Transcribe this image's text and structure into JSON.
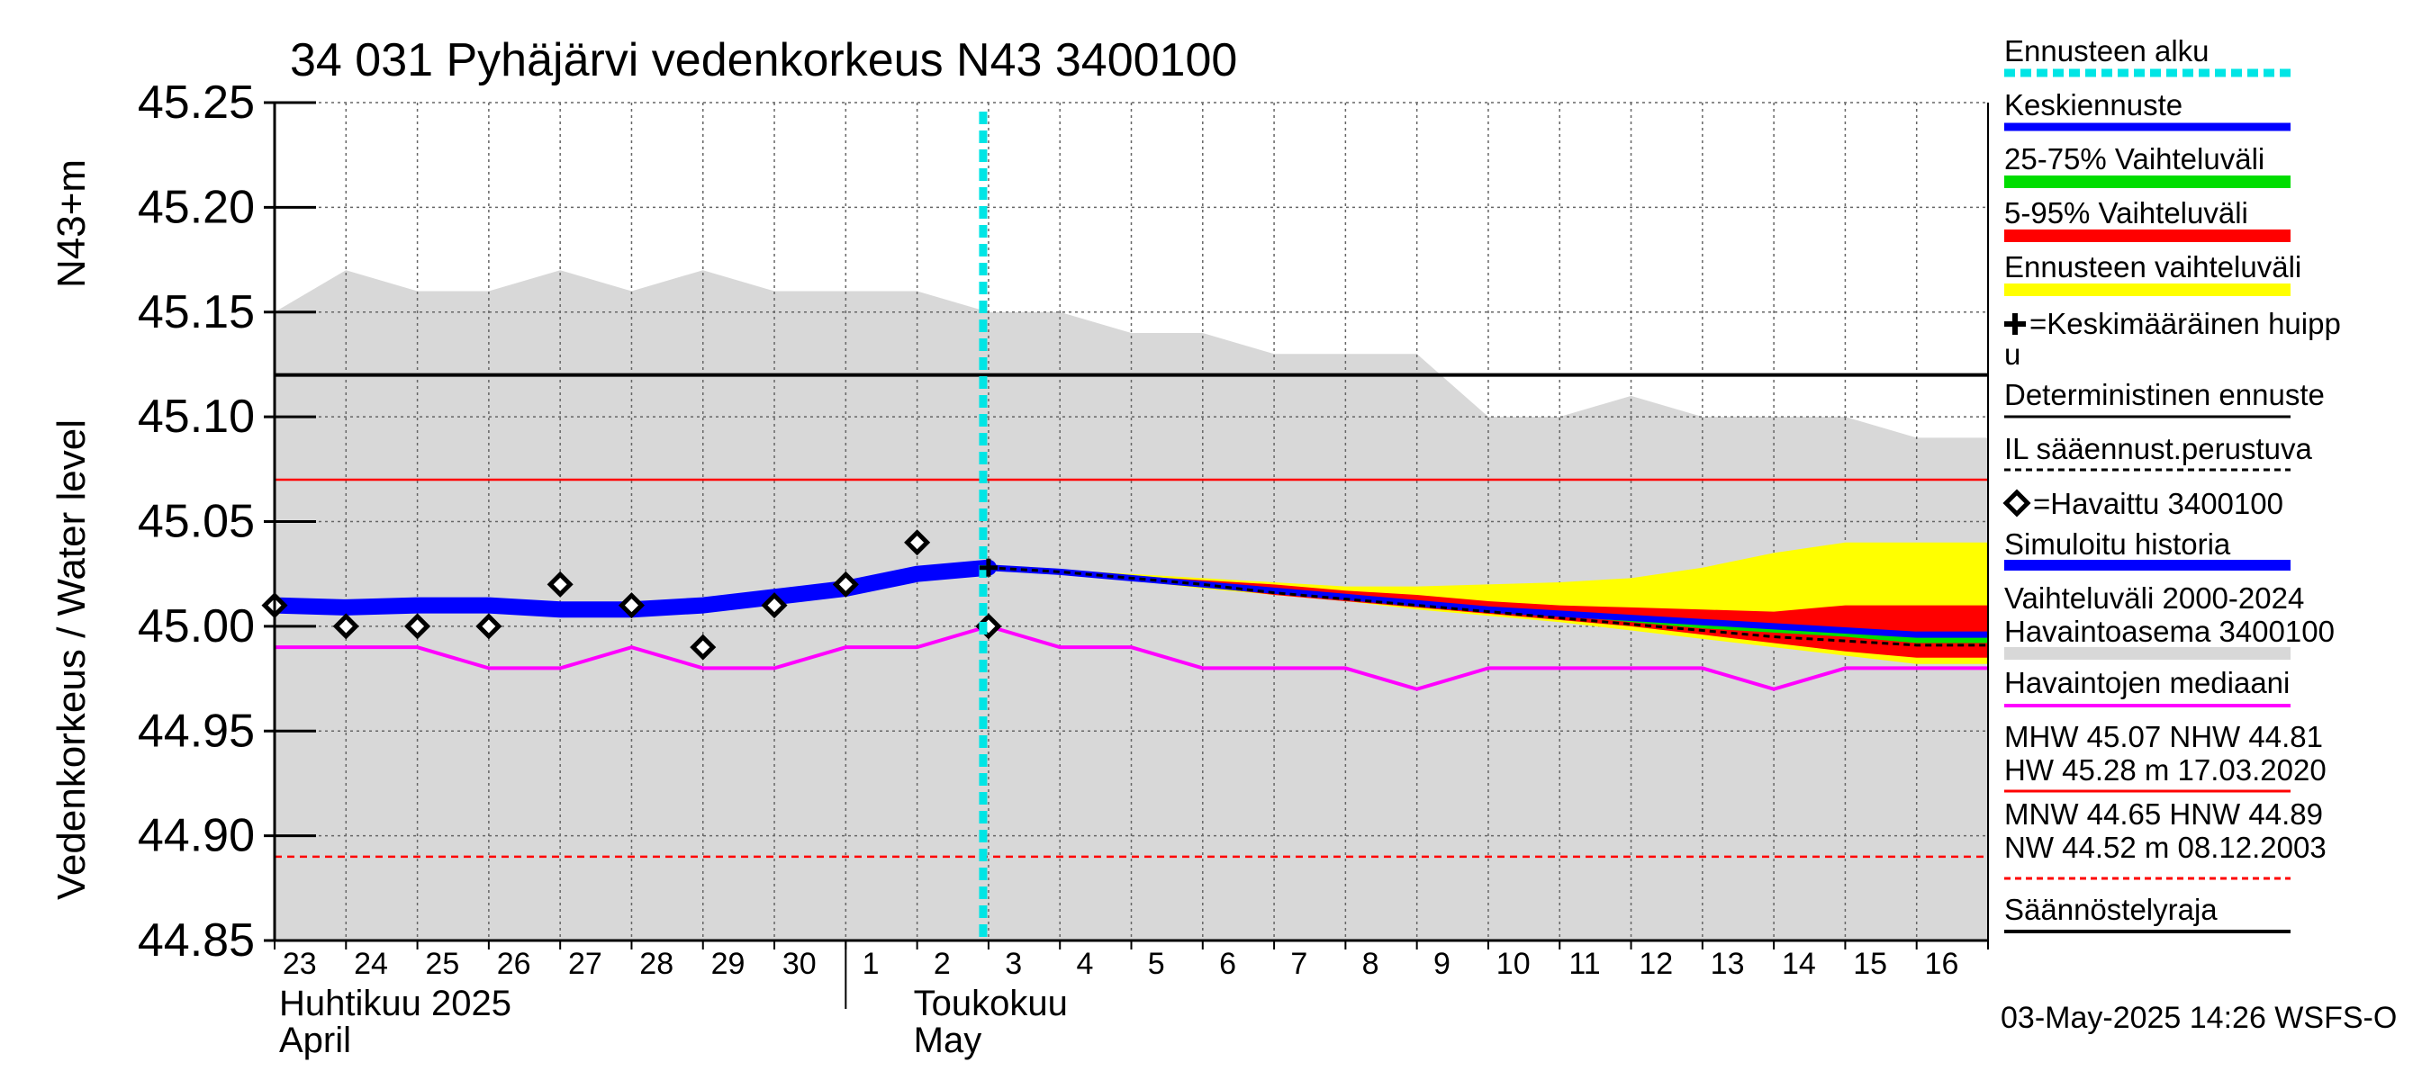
{
  "chart_data": {
    "type": "line",
    "title": "34 031 Pyhäjärvi vedenkorkeus N43 3400100",
    "ylabel": "Vedenkorkeus / Water level",
    "yunit": "N43+m",
    "ylim": [
      44.85,
      45.25
    ],
    "yticks": [
      "45.25",
      "45.20",
      "45.15",
      "45.10",
      "45.05",
      "45.00",
      "44.95",
      "44.90",
      "44.85"
    ],
    "x_start": "2025-04-23",
    "x_end": "2025-05-16",
    "day_labels": [
      "23",
      "24",
      "25",
      "26",
      "27",
      "28",
      "29",
      "30",
      "1",
      "2",
      "3",
      "4",
      "5",
      "6",
      "7",
      "8",
      "9",
      "10",
      "11",
      "12",
      "13",
      "14",
      "15",
      "16"
    ],
    "month_labels": [
      {
        "fi": "Huhtikuu  2025",
        "en": "April",
        "day": "2025-04-23"
      },
      {
        "fi": "Toukokuu",
        "en": "May",
        "day": "2025-05-02"
      }
    ],
    "forecast_start": "2025-05-03",
    "historical_range": {
      "name": "Vaihteluväli 2000-2024",
      "x": [
        "2025-04-23",
        "2025-04-24",
        "2025-04-25",
        "2025-04-26",
        "2025-04-27",
        "2025-04-28",
        "2025-04-29",
        "2025-04-30",
        "2025-05-01",
        "2025-05-02",
        "2025-05-03",
        "2025-05-04",
        "2025-05-05",
        "2025-05-06",
        "2025-05-07",
        "2025-05-08",
        "2025-05-09",
        "2025-05-10",
        "2025-05-11",
        "2025-05-12",
        "2025-05-13",
        "2025-05-14",
        "2025-05-15",
        "2025-05-16"
      ],
      "upper": [
        45.15,
        45.17,
        45.16,
        45.16,
        45.17,
        45.16,
        45.17,
        45.16,
        45.16,
        45.16,
        45.15,
        45.15,
        45.14,
        45.14,
        45.13,
        45.13,
        45.13,
        45.1,
        45.1,
        45.11,
        45.1,
        45.1,
        45.1,
        45.09
      ]
    },
    "median": {
      "name": "Havaintojen mediaani",
      "values": [
        44.99,
        44.99,
        44.99,
        44.98,
        44.98,
        44.99,
        44.98,
        44.98,
        44.99,
        44.99,
        45.0,
        44.99,
        44.99,
        44.98,
        44.98,
        44.98,
        44.97,
        44.98,
        44.98,
        44.98,
        44.98,
        44.97,
        44.98,
        44.98
      ]
    },
    "simulated_history": {
      "name": "Simuloitu historia",
      "x": [
        "2025-04-23",
        "2025-04-24",
        "2025-04-25",
        "2025-04-26",
        "2025-04-27",
        "2025-04-28",
        "2025-04-29",
        "2025-04-30",
        "2025-05-01",
        "2025-05-02",
        "2025-05-03"
      ],
      "values": [
        45.01,
        45.009,
        45.01,
        45.01,
        45.008,
        45.008,
        45.01,
        45.014,
        45.018,
        45.025,
        45.028
      ]
    },
    "observed": {
      "name": "=Havaittu 3400100",
      "x": [
        "2025-04-23",
        "2025-04-24",
        "2025-04-25",
        "2025-04-26",
        "2025-04-27",
        "2025-04-28",
        "2025-04-29",
        "2025-04-30",
        "2025-05-01",
        "2025-05-02",
        "2025-05-03"
      ],
      "values": [
        45.01,
        45.0,
        45.0,
        45.0,
        45.02,
        45.01,
        44.99,
        45.01,
        45.02,
        45.04,
        45.0
      ]
    },
    "forecast": {
      "x": [
        "2025-05-03",
        "2025-05-04",
        "2025-05-05",
        "2025-05-06",
        "2025-05-07",
        "2025-05-08",
        "2025-05-09",
        "2025-05-10",
        "2025-05-11",
        "2025-05-12",
        "2025-05-13",
        "2025-05-14",
        "2025-05-15",
        "2025-05-16"
      ],
      "mean": [
        45.028,
        45.026,
        45.023,
        45.02,
        45.017,
        45.014,
        45.011,
        45.008,
        45.006,
        45.004,
        45.002,
        45.0,
        44.998,
        44.996
      ],
      "deterministic": [
        45.028,
        45.026,
        45.023,
        45.02,
        45.016,
        45.013,
        45.01,
        45.007,
        45.004,
        45.001,
        44.998,
        44.995,
        44.993,
        44.991
      ],
      "p25": [
        45.028,
        45.026,
        45.023,
        45.019,
        45.016,
        45.013,
        45.01,
        45.007,
        45.005,
        45.002,
        44.999,
        44.997,
        44.995,
        44.992
      ],
      "p75": [
        45.028,
        45.026,
        45.023,
        45.021,
        45.018,
        45.015,
        45.012,
        45.009,
        45.007,
        45.005,
        45.003,
        45.001,
        44.999,
        44.997
      ],
      "p05": [
        45.028,
        45.026,
        45.022,
        45.019,
        45.015,
        45.012,
        45.009,
        45.006,
        45.003,
        45.0,
        44.996,
        44.992,
        44.988,
        44.985
      ],
      "p95": [
        45.028,
        45.026,
        45.024,
        45.022,
        45.02,
        45.017,
        45.015,
        45.012,
        45.01,
        45.009,
        45.008,
        45.007,
        45.01,
        45.01
      ],
      "ens_min": [
        45.028,
        45.025,
        45.022,
        45.018,
        45.015,
        45.012,
        45.008,
        45.005,
        45.002,
        44.998,
        44.994,
        44.99,
        44.986,
        44.982
      ],
      "ens_max": [
        45.028,
        45.027,
        45.025,
        45.023,
        45.021,
        45.019,
        45.019,
        45.02,
        45.021,
        45.023,
        45.028,
        45.035,
        45.04,
        45.04
      ]
    },
    "reference_lines": {
      "mean_peak": 45.12,
      "mhw": 45.07,
      "regulation_limit": 44.89
    },
    "legend": {
      "forecast_start": "Ennusteen alku",
      "mean_forecast": "Keskiennuste",
      "range_25_75": "25-75% Vaihteluväli",
      "range_5_95": "5-95% Vaihteluväli",
      "ensemble_range": "Ennusteen vaihteluväli",
      "mean_peak_1": "=Keskimääräinen huipp",
      "mean_peak_2": "u",
      "deterministic": "Deterministinen ennuste",
      "weather_based": "IL sääennust.perustuva",
      "observed": "=Havaittu 3400100",
      "simulated": "Simuloitu historia",
      "hist_range_1": "Vaihteluväli 2000-2024",
      "hist_range_2": " Havaintoasema 3400100",
      "median": "Havaintojen mediaani",
      "mhw_line": "MHW  45.07 NHW  44.81",
      "hw_line": "HW  45.28 m 17.03.2020",
      "mnw_line": "MNW  44.65 HNW  44.89",
      "nw_line": "NW  44.52 m 08.12.2003",
      "regulation": "Säännöstelyraja"
    },
    "timestamp": "03-May-2025 14:26 WSFS-O",
    "colors": {
      "forecast_start": "#00e5e5",
      "mean_forecast": "#0000ff",
      "range_25_75": "#00dd00",
      "range_5_95": "#ff0000",
      "ensemble_range": "#ffff00",
      "median": "#ff00ff",
      "history_band": "#d8d8d8",
      "mhw": "#ff0000"
    }
  }
}
